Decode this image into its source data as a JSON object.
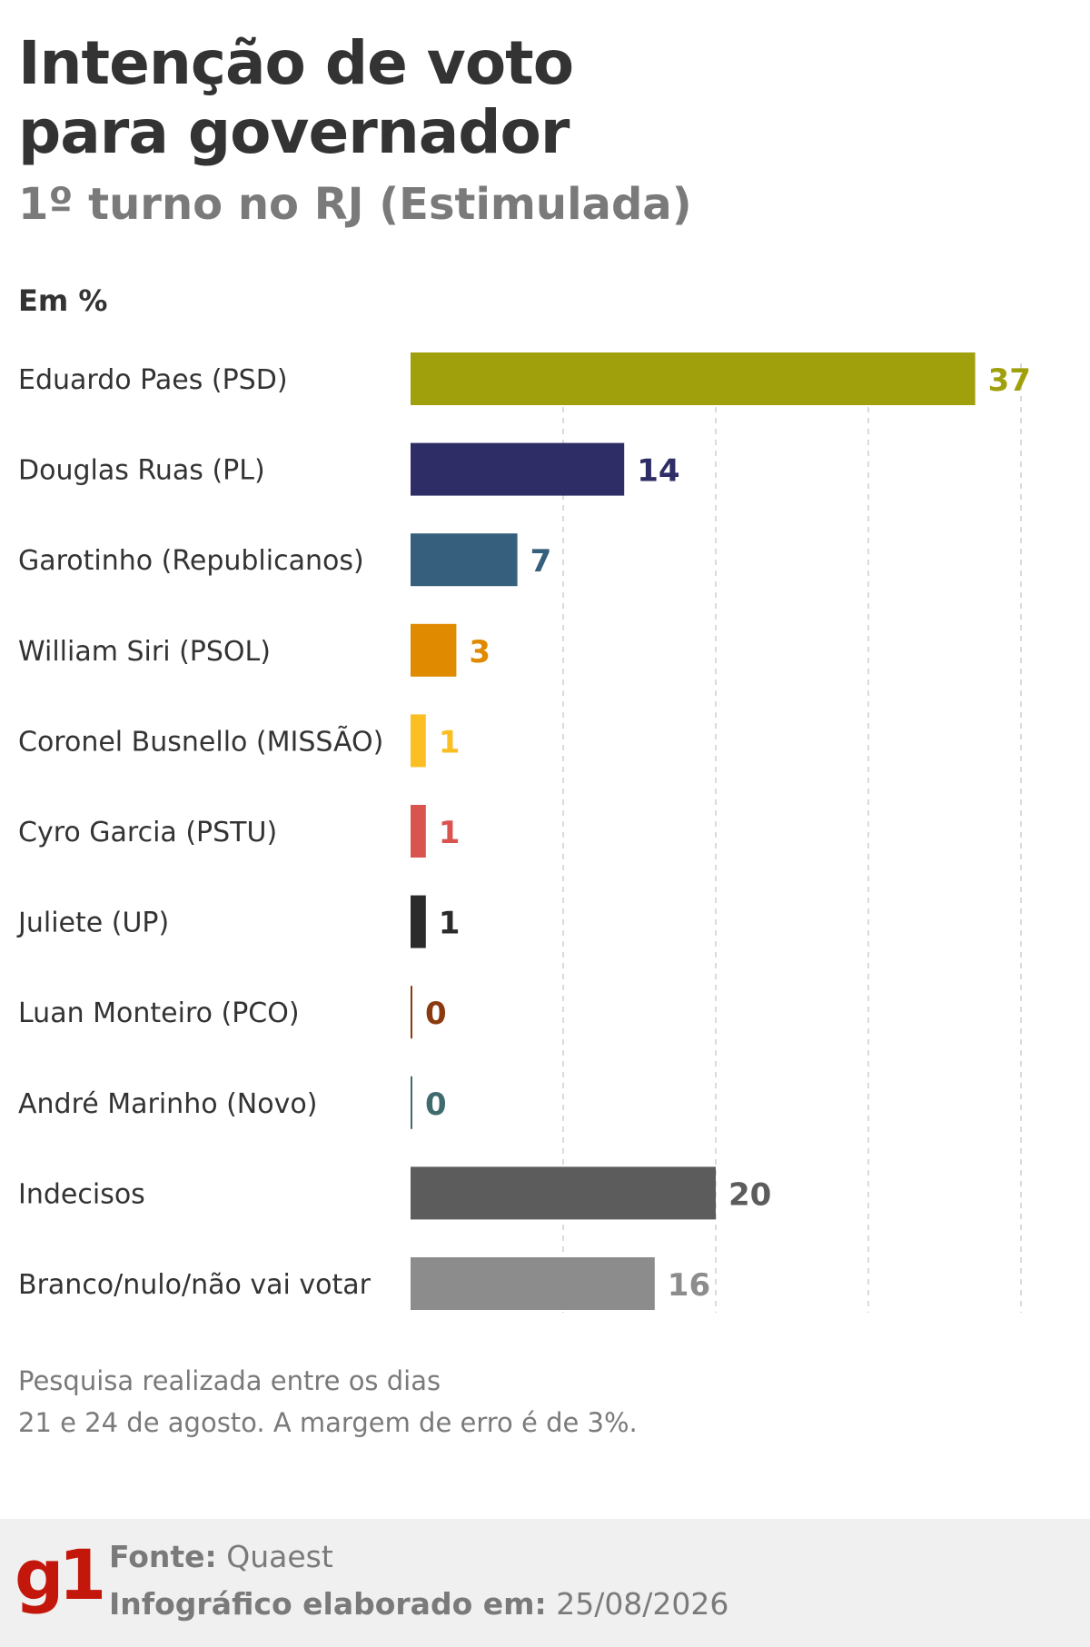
{
  "header": {
    "title_line1": "Intenção de voto",
    "title_line2": "para governador",
    "subtitle": "1º turno no RJ (Estimulada)",
    "unit": "Em %"
  },
  "chart_data": {
    "type": "bar",
    "orientation": "horizontal",
    "xlim": [
      0,
      40
    ],
    "grid": true,
    "categories": [
      "Eduardo Paes (PSD)",
      "Douglas Ruas (PL)",
      "Garotinho (Republicanos)",
      "William Siri (PSOL)",
      "Coronel Busnello (MISSÃO)",
      "Cyro Garcia (PSTU)",
      "Juliete (UP)",
      "Luan Monteiro (PCO)",
      "André Marinho (Novo)",
      "Indecisos",
      "Branco/nulo/não vai votar"
    ],
    "values": [
      37,
      14,
      7,
      3,
      1,
      1,
      1,
      0,
      0,
      20,
      16
    ],
    "colors": [
      "#a0a00c",
      "#2e2d66",
      "#365f7d",
      "#e08a00",
      "#fbbf24",
      "#d9534f",
      "#2b2b2b",
      "#8b3a0f",
      "#3f6b6e",
      "#5c5c5c",
      "#8c8c8c"
    ]
  },
  "note": {
    "line1": "Pesquisa realizada entre os dias",
    "line2": "21 e 24 de agosto. A margem de erro é de 3%."
  },
  "footer": {
    "logo": "g1",
    "source_label": "Fonte:",
    "source_value": "Quaest",
    "date_label": "Infográfico elaborado em:",
    "date_value": "25/08/2026"
  }
}
